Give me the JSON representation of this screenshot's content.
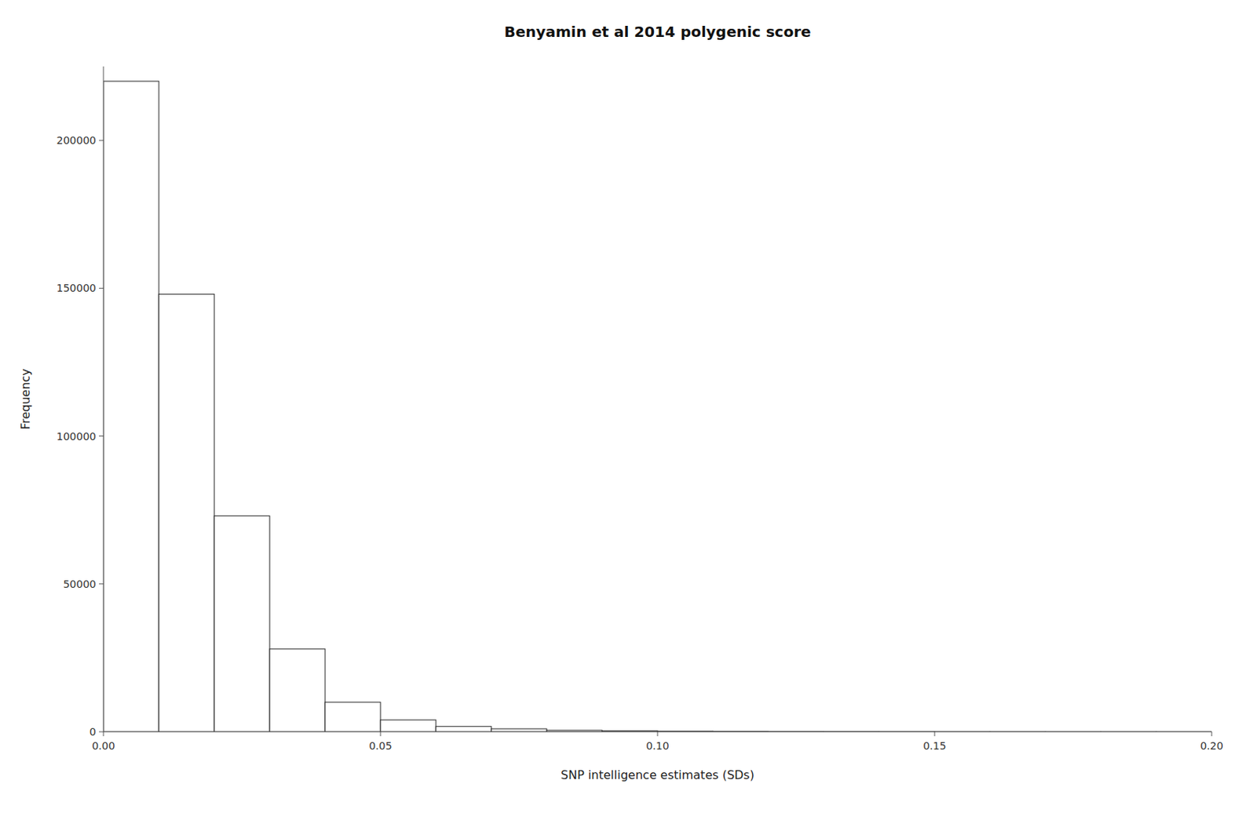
{
  "chart_data": {
    "type": "histogram",
    "title": "Benyamin et al 2014 polygenic score",
    "xlabel": "SNP intelligence estimates (SDs)",
    "ylabel": "Frequency",
    "color": "#ffffff",
    "bins": [
      0.0,
      0.01,
      0.02,
      0.03,
      0.04,
      0.05,
      0.06,
      0.07,
      0.08,
      0.09,
      0.1,
      0.11,
      0.12,
      0.13,
      0.14,
      0.15,
      0.16,
      0.17,
      0.18,
      0.19,
      0.2
    ],
    "values": [
      220000,
      148000,
      73000,
      28000,
      10000,
      4000,
      1800,
      1000,
      500,
      300,
      200,
      150,
      100,
      80,
      60,
      40,
      30,
      20,
      15,
      10
    ],
    "xlim": [
      0.0,
      0.2
    ],
    "ylim": [
      0,
      225000
    ],
    "xticks": [
      {
        "value": 0.0,
        "label": "0.00"
      },
      0.05,
      {
        "value": 0.1,
        "label": "0.10"
      },
      0.15,
      {
        "value": 0.2,
        "label": "0.20"
      }
    ],
    "yticks": [
      0,
      50000,
      100000,
      150000,
      200000
    ],
    "grid": false
  }
}
